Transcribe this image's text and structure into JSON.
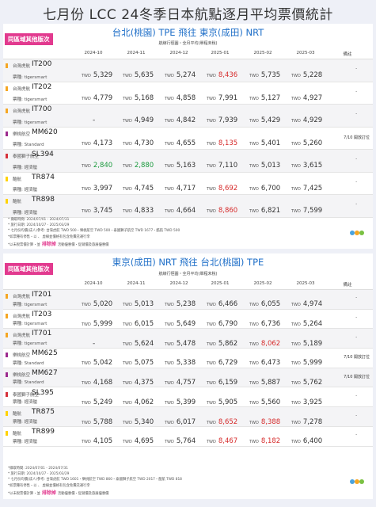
{
  "title": "七月份 LCC 24冬季日本航點逐月平均票價統計",
  "colors": {
    "tigerair": "#f5a623",
    "peach": "#9c2a8e",
    "scoot": "#ffd200",
    "batik": "#d6303b",
    "red": "#d62b2b",
    "green": "#1b9a3e",
    "accent": "#1f6fc8",
    "pink": "#e23a8f"
  },
  "chart_data": [
    {
      "type": "table",
      "tag": "同區域其他版次",
      "route": "台北(桃園) TPE 飛往 東京(成田) NRT",
      "subtitle": "航線行徑圖・全月平均(單程未稅)",
      "columns": [
        "2024-10",
        "2024-11",
        "2024-12",
        "2025-01",
        "2025-02",
        "2025-03",
        "備註"
      ],
      "currency": "TWD",
      "rows": [
        {
          "airline": "台灣虎航",
          "flight": "IT200",
          "fare": "票種: tigersmart",
          "values": [
            "5,329",
            "5,635",
            "5,274",
            "8,436",
            "5,735",
            "5,228"
          ],
          "highlight": [
            "",
            "",
            "",
            "red",
            "",
            ""
          ],
          "note": "-"
        },
        {
          "airline": "台灣虎航",
          "flight": "IT202",
          "fare": "票種: tigersmart",
          "values": [
            "4,779",
            "5,168",
            "4,858",
            "7,991",
            "5,127",
            "4,927"
          ],
          "highlight": [
            "",
            "",
            "",
            "",
            "",
            ""
          ],
          "note": "-"
        },
        {
          "airline": "台灣虎航",
          "flight": "IT700",
          "fare": "票種: tigersmart",
          "values": [
            "-",
            "4,949",
            "4,842",
            "7,939",
            "5,429",
            "4,929"
          ],
          "highlight": [
            "",
            "",
            "",
            "",
            "",
            ""
          ],
          "note": "-"
        },
        {
          "airline": "樂桃航空",
          "flight": "MM620",
          "fare": "票種: Standard",
          "values": [
            "4,173",
            "4,730",
            "4,655",
            "8,135",
            "5,401",
            "5,260"
          ],
          "highlight": [
            "",
            "",
            "",
            "red",
            "",
            ""
          ],
          "note": "7/10 開放訂位"
        },
        {
          "airline": "泰國獅子航空",
          "flight": "SL394",
          "fare": "票種: 經濟艙",
          "values": [
            "2,840",
            "2,880",
            "5,163",
            "7,110",
            "5,013",
            "3,615"
          ],
          "highlight": [
            "green",
            "green",
            "",
            "",
            "",
            ""
          ],
          "note": "-"
        },
        {
          "airline": "酷航",
          "flight": "TR874",
          "fare": "票種: 經濟艙",
          "values": [
            "3,997",
            "4,745",
            "4,717",
            "8,692",
            "6,700",
            "7,425"
          ],
          "highlight": [
            "",
            "",
            "",
            "red",
            "",
            ""
          ],
          "note": "-"
        },
        {
          "airline": "酷航",
          "flight": "TR898",
          "fare": "票種: 經濟艙",
          "values": [
            "3,745",
            "4,833",
            "4,664",
            "8,860",
            "6,821",
            "7,599"
          ],
          "highlight": [
            "",
            "",
            "",
            "red",
            "",
            ""
          ],
          "note": "-"
        }
      ],
      "footnotes": [
        "* 擷取時間: 2024/07/01 - 2024/07/31",
        "* 旅行日期: 2024/10/27 - 2025/03/29",
        "* 七月份均價(成人)參考: 台灣虎航 TWD 500・樂桃航空 TWD 500・泰國獅子航空 TWD 1677・酷航 TWD 500",
        "*如票種有停售・以 、 虛線並價格有包含免費託運行李",
        "*以未稅票價計算・並"
      ],
      "footnote_emphasis": "排除掉",
      "footnote_tail": "活動優惠價・促銷價及旅展優惠價"
    },
    {
      "type": "table",
      "tag": "同區域其他版次",
      "route": "東京(成田) NRT 飛往 台北(桃園) TPE",
      "subtitle": "航線行徑圖・全月平均(單程未稅)",
      "columns": [
        "2024-10",
        "2024-11",
        "2024-12",
        "2025-01",
        "2025-02",
        "2025-03",
        "備註"
      ],
      "currency": "TWD",
      "rows": [
        {
          "airline": "台灣虎航",
          "flight": "IT201",
          "fare": "票種: tigersmart",
          "values": [
            "5,020",
            "5,013",
            "5,238",
            "6,466",
            "6,055",
            "4,974"
          ],
          "highlight": [
            "",
            "",
            "",
            "",
            "",
            ""
          ],
          "note": "-"
        },
        {
          "airline": "台灣虎航",
          "flight": "IT203",
          "fare": "票種: tigersmart",
          "values": [
            "5,999",
            "6,015",
            "5,649",
            "6,790",
            "6,736",
            "5,264"
          ],
          "highlight": [
            "",
            "",
            "",
            "",
            "",
            ""
          ],
          "note": "-"
        },
        {
          "airline": "台灣虎航",
          "flight": "IT701",
          "fare": "票種: tigersmart",
          "values": [
            "-",
            "5,624",
            "5,478",
            "5,862",
            "8,062",
            "5,189"
          ],
          "highlight": [
            "",
            "",
            "",
            "",
            "red",
            ""
          ],
          "note": "-"
        },
        {
          "airline": "樂桃航空",
          "flight": "MM625",
          "fare": "票種: Standard",
          "values": [
            "5,042",
            "5,075",
            "5,338",
            "6,729",
            "6,473",
            "5,999"
          ],
          "highlight": [
            "",
            "",
            "",
            "",
            "",
            ""
          ],
          "note": "7/10 開放訂位"
        },
        {
          "airline": "樂桃航空",
          "flight": "MM627",
          "fare": "票種: Standard",
          "values": [
            "4,168",
            "4,375",
            "4,757",
            "6,159",
            "5,887",
            "5,762"
          ],
          "highlight": [
            "",
            "",
            "",
            "",
            "",
            ""
          ],
          "note": "7/10 開放訂位"
        },
        {
          "airline": "泰國獅子航空",
          "flight": "SL395",
          "fare": "票種: 經濟艙",
          "values": [
            "5,249",
            "4,062",
            "5,399",
            "5,905",
            "5,560",
            "3,925"
          ],
          "highlight": [
            "",
            "",
            "",
            "",
            "",
            ""
          ],
          "note": "-"
        },
        {
          "airline": "酷航",
          "flight": "TR875",
          "fare": "票種: 經濟艙",
          "values": [
            "5,788",
            "5,340",
            "6,017",
            "8,652",
            "8,388",
            "7,278"
          ],
          "highlight": [
            "",
            "",
            "",
            "red",
            "red",
            ""
          ],
          "note": "-"
        },
        {
          "airline": "酷航",
          "flight": "TR899",
          "fare": "票種: 經濟艙",
          "values": [
            "4,105",
            "4,695",
            "5,764",
            "8,467",
            "8,182",
            "6,400"
          ],
          "highlight": [
            "",
            "",
            "",
            "red",
            "red",
            ""
          ],
          "note": "-"
        }
      ],
      "footnotes": [
        "*擷取時間: 2024/07/01 - 2024/07/31",
        "* 旅行日期: 2024/10/27 - 2025/03/29",
        "* 七月份均價(成人)參考: 台灣虎航 TWD 1601・樂桃航空 TWD 860・泰國獅子航空 TWD 2017・酷航 TWD 818",
        "*如票種有停售・以 、 虛線並價格有包含免費託運行李",
        "*以未稅票價計算・並"
      ],
      "footnote_emphasis": "排除掉",
      "footnote_tail": "活動優惠價・促銷價及旅展優惠價"
    }
  ]
}
